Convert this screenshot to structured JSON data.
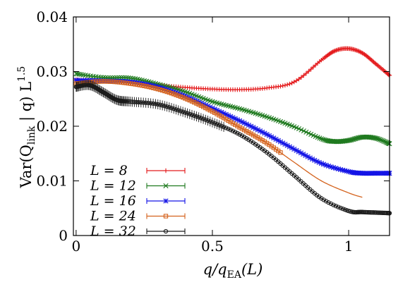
{
  "chart_data": {
    "type": "line",
    "title": "",
    "xlabel": "q/q_EA(L)",
    "xlabel_parts": {
      "q": "q",
      "slash": "/q",
      "sub": "EA",
      "tail": "(L)"
    },
    "ylabel": "Var(Q_link | q) L^1.5",
    "ylabel_parts": {
      "pre": "Var(Q",
      "sub": "link",
      "mid": " | q) L",
      "sup": "1.5"
    },
    "xlim": [
      -0.01,
      1.15
    ],
    "ylim": [
      0,
      0.04
    ],
    "x_ticks": [
      {
        "value": 0,
        "label": "0"
      },
      {
        "value": 0.5,
        "label": "0.5"
      },
      {
        "value": 1,
        "label": "1"
      }
    ],
    "y_ticks": [
      {
        "value": 0,
        "label": "0"
      },
      {
        "value": 0.01,
        "label": "0.01"
      },
      {
        "value": 0.02,
        "label": "0.02"
      },
      {
        "value": 0.03,
        "label": "0.03"
      },
      {
        "value": 0.04,
        "label": "0.04"
      }
    ],
    "grid": false,
    "legend_position": "bottom-left",
    "series": [
      {
        "name": "L = 8",
        "color": "#e41a1c",
        "marker": "plus",
        "x": [
          0.0,
          0.1,
          0.2,
          0.3,
          0.4,
          0.5,
          0.6,
          0.7,
          0.8,
          0.9,
          0.95,
          1.0,
          1.05,
          1.1,
          1.15
        ],
        "y": [
          0.0285,
          0.0283,
          0.0279,
          0.0275,
          0.0271,
          0.0268,
          0.0267,
          0.027,
          0.0281,
          0.0321,
          0.0338,
          0.0342,
          0.0334,
          0.0314,
          0.0293
        ]
      },
      {
        "name": "L = 12",
        "color": "#1f7a1f",
        "marker": "x",
        "x": [
          0.0,
          0.1,
          0.2,
          0.3,
          0.4,
          0.5,
          0.6,
          0.7,
          0.8,
          0.9,
          0.95,
          1.0,
          1.05,
          1.1,
          1.15
        ],
        "y": [
          0.0296,
          0.0289,
          0.0288,
          0.0277,
          0.0263,
          0.0245,
          0.0232,
          0.0217,
          0.0199,
          0.0177,
          0.0172,
          0.0174,
          0.018,
          0.0178,
          0.0168
        ]
      },
      {
        "name": "L = 16",
        "color": "#1414e6",
        "marker": "star",
        "x": [
          0.0,
          0.1,
          0.2,
          0.3,
          0.4,
          0.5,
          0.6,
          0.7,
          0.8,
          0.9,
          1.0,
          1.05,
          1.1,
          1.15
        ],
        "y": [
          0.0284,
          0.0283,
          0.0281,
          0.0272,
          0.0255,
          0.0233,
          0.021,
          0.0185,
          0.0158,
          0.0132,
          0.0117,
          0.0114,
          0.0114,
          0.0114
        ]
      },
      {
        "name": "L = 24",
        "color": "#d4621c",
        "marker": "square",
        "marker_max_x": 0.75,
        "x": [
          0.0,
          0.1,
          0.2,
          0.3,
          0.4,
          0.5,
          0.6,
          0.7,
          0.8,
          0.9,
          1.0,
          1.05
        ],
        "y": [
          0.0278,
          0.0282,
          0.0278,
          0.0268,
          0.0251,
          0.0227,
          0.0198,
          0.0169,
          0.0134,
          0.01,
          0.0078,
          0.007
        ]
      },
      {
        "name": "L = 32",
        "color": "#1a1a1a",
        "marker": "circle",
        "x": [
          0.0,
          0.05,
          0.1,
          0.15,
          0.2,
          0.3,
          0.4,
          0.5,
          0.6,
          0.7,
          0.8,
          0.9,
          1.0,
          1.05,
          1.1,
          1.15
        ],
        "y": [
          0.0272,
          0.0275,
          0.0262,
          0.0248,
          0.0245,
          0.024,
          0.0225,
          0.0207,
          0.0185,
          0.0152,
          0.011,
          0.0068,
          0.0045,
          0.0043,
          0.0042,
          0.0041
        ]
      }
    ]
  }
}
